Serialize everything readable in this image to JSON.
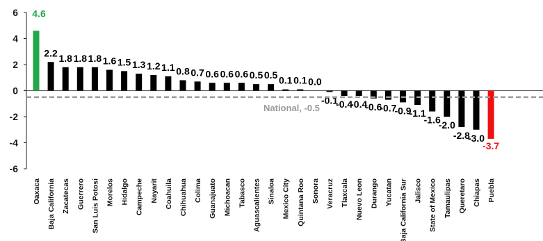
{
  "chart_data": {
    "type": "bar",
    "categories": [
      "Oaxaca",
      "Baja California",
      "Zacatecas",
      "Guerrero",
      "San Luis Potosi",
      "Morelos",
      "Hidalgo",
      "Campeche",
      "Nayarit",
      "Coahuila",
      "Chihuahua",
      "Colima",
      "Guanajuato",
      "Michoacan",
      "Tabasco",
      "Aguascalientes",
      "Sinaloa",
      "Mexico City",
      "Quintana Roo",
      "Sonora",
      "Veracruz",
      "Tlaxcala",
      "Nuevo Leon",
      "Durango",
      "Yucatan",
      "Baja California Sur",
      "Jalisco",
      "State of Mexico",
      "Tamaulipas",
      "Queretaro",
      "Chiapas",
      "Puebla"
    ],
    "values": [
      4.6,
      2.2,
      1.8,
      1.8,
      1.8,
      1.6,
      1.5,
      1.3,
      1.2,
      1.1,
      0.8,
      0.7,
      0.6,
      0.6,
      0.6,
      0.5,
      0.5,
      0.1,
      0.1,
      0.0,
      -0.1,
      -0.4,
      -0.4,
      -0.6,
      -0.7,
      -0.9,
      -1.1,
      -1.6,
      -2.0,
      -2.8,
      -3.0,
      -3.7
    ],
    "value_labels": [
      "4.6",
      "2.2",
      "1.8",
      "1.8",
      "1.8",
      "1.6",
      "1.5",
      "1.3",
      "1.2",
      "1.1",
      "0.8",
      "0.7",
      "0.6",
      "0.6",
      "0.6",
      "0.5",
      "0.5",
      "0.1",
      "0.1",
      "0.0",
      "-0.1",
      "-0.4",
      "-0.4",
      "-0.6",
      "-0.7",
      "-0.9",
      "-1.1",
      "-1.6",
      "-2.0",
      "-2.8",
      "-3.0",
      "-3.7"
    ],
    "ylim": [
      -6,
      6
    ],
    "yticks": [
      6,
      4,
      2,
      0,
      -2,
      -4,
      -6
    ],
    "reference_line": {
      "value": -0.5,
      "label": "National, -0.5"
    },
    "grid": false,
    "colors": {
      "default": "#000000",
      "highlight_max": "#22a84a",
      "highlight_min": "#ee1111",
      "reference": "#9a9a9a"
    }
  }
}
